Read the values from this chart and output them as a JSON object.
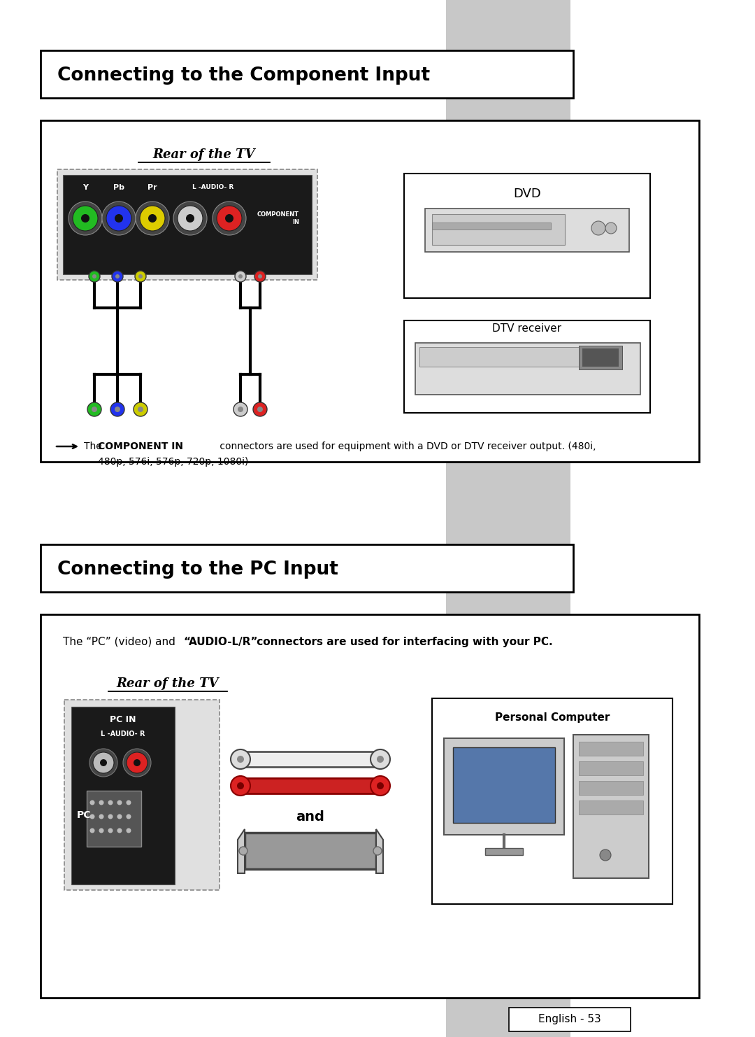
{
  "bg_color": "#ffffff",
  "sidebar_color": "#c8c8c8",
  "section1_title": "Connecting to the Component Input",
  "section2_title": "Connecting to the PC Input",
  "rear_tv_label": "Rear of the TV",
  "dvd_label": "DVD",
  "dtv_label": "DTV receiver",
  "personal_computer_label": "Personal Computer",
  "note_plain": "The ",
  "note_bold": "COMPONENT IN",
  "note_rest": " connectors are used for equipment with a DVD or DTV receiver output. (480i,",
  "note_line2": "480p, 576i, 576p, 720p, 1080i)",
  "pc_note_plain": "The “PC” (video) and ",
  "pc_note_bold1": "“AUDIO-L/R”",
  "pc_note_bold2": " connectors are used for interfacing with your PC.",
  "footer_text": "English - 53",
  "conn_colors_comp": [
    "#22bb22",
    "#2233ee",
    "#ddcc00",
    "#cccccc",
    "#dd2222"
  ],
  "wire_colors_left": [
    "#22bb22",
    "#2233ee",
    "#cccc00"
  ],
  "wire_colors_right": [
    "#cccccc",
    "#dd2222"
  ]
}
